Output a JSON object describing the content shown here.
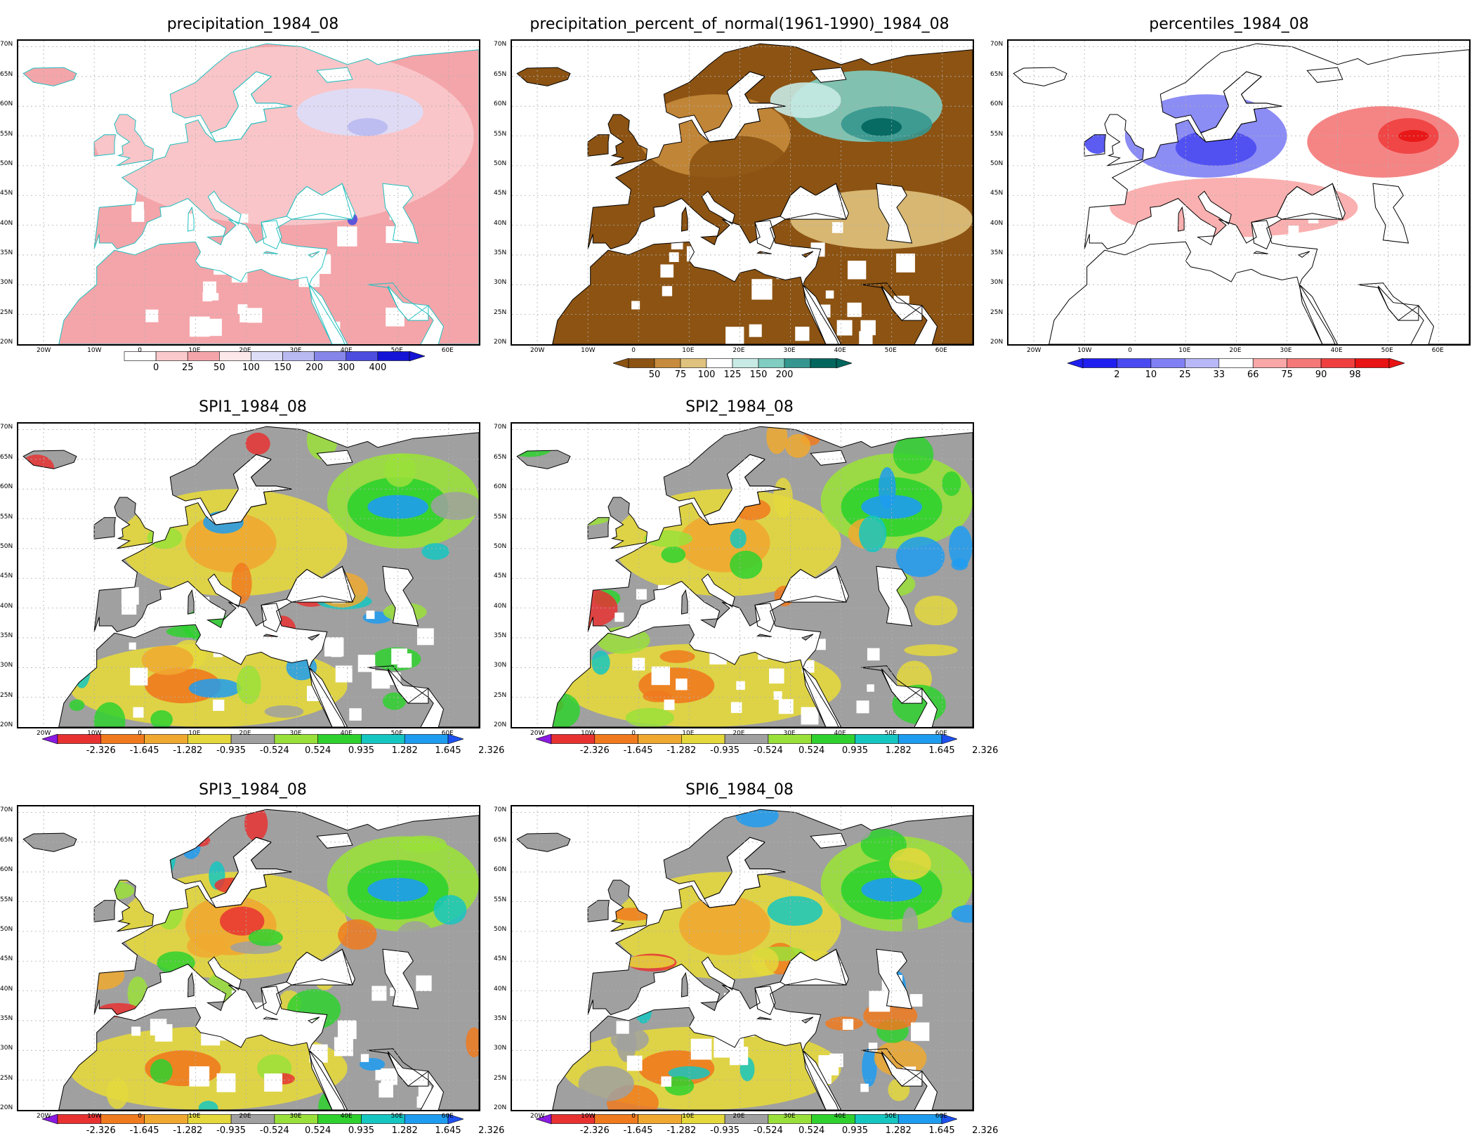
{
  "panels": [
    {
      "id": "precipitation",
      "title": "precipitation_1984_08",
      "scale": "precip",
      "legend_labels": [
        "0",
        "25",
        "50",
        "100",
        "150",
        "200",
        "300",
        "400"
      ],
      "legend_colors": [
        "#ffffff",
        "#f9c9cb",
        "#f4a5aa",
        "#fce8ea",
        "#ddddf8",
        "#b9b9f2",
        "#8585ea",
        "#4d4de0",
        "#1414d6"
      ],
      "underflow": false,
      "overflow_color": "#1414d6"
    },
    {
      "id": "percent-normal",
      "title": "precipitation_percent_of_normal(1961-1990)_1984_08",
      "scale": "percent",
      "legend_labels": [
        "50",
        "75",
        "100",
        "125",
        "150",
        "200"
      ],
      "legend_colors": [
        "#8c5313",
        "#c68b3c",
        "#dfc27d",
        "#ffffff",
        "#c7eae5",
        "#80cdc1",
        "#35978f",
        "#01665e"
      ],
      "underflow_color": "#8c5313",
      "overflow_color": "#01665e"
    },
    {
      "id": "percentiles",
      "title": "percentiles_1984_08",
      "scale": "pctl",
      "legend_labels": [
        "2",
        "10",
        "25",
        "33",
        "66",
        "75",
        "90",
        "98"
      ],
      "legend_colors": [
        "#1f1fef",
        "#4a4af2",
        "#8080f4",
        "#b8b8f8",
        "#ffffff",
        "#f9a7a7",
        "#f47878",
        "#ef3f3f",
        "#e81313"
      ],
      "underflow_color": "#1f1fef",
      "overflow_color": "#e81313"
    },
    {
      "id": "spi1",
      "title": "SPI1_1984_08",
      "scale": "spi",
      "legend_labels": [
        "-2.326",
        "-1.645",
        "-1.282",
        "-0.935",
        "-0.524",
        "0.524",
        "0.935",
        "1.282",
        "1.645",
        "2.326"
      ],
      "legend_colors": [
        "#e83232",
        "#f07a1e",
        "#f0a930",
        "#e4d83c",
        "#a0a0a0",
        "#9ae03a",
        "#2fd12f",
        "#16c6c0",
        "#1e9cf0"
      ],
      "underflow_color": "#8a1be0",
      "overflow_color": "#1e50f0"
    },
    {
      "id": "spi2",
      "title": "SPI2_1984_08",
      "scale": "spi",
      "legend_labels": [
        "-2.326",
        "-1.645",
        "-1.282",
        "-0.935",
        "-0.524",
        "0.524",
        "0.935",
        "1.282",
        "1.645",
        "2.326"
      ],
      "legend_colors": [
        "#e83232",
        "#f07a1e",
        "#f0a930",
        "#e4d83c",
        "#a0a0a0",
        "#9ae03a",
        "#2fd12f",
        "#16c6c0",
        "#1e9cf0"
      ],
      "underflow_color": "#8a1be0",
      "overflow_color": "#1e50f0"
    },
    {
      "id": "spi3",
      "title": "SPI3_1984_08",
      "scale": "spi",
      "legend_labels": [
        "-2.326",
        "-1.645",
        "-1.282",
        "-0.935",
        "-0.524",
        "0.524",
        "0.935",
        "1.282",
        "1.645",
        "2.326"
      ],
      "legend_colors": [
        "#e83232",
        "#f07a1e",
        "#f0a930",
        "#e4d83c",
        "#a0a0a0",
        "#9ae03a",
        "#2fd12f",
        "#16c6c0",
        "#1e9cf0"
      ],
      "underflow_color": "#8a1be0",
      "overflow_color": "#1e50f0"
    },
    {
      "id": "spi6",
      "title": "SPI6_1984_08",
      "scale": "spi",
      "legend_labels": [
        "-2.326",
        "-1.645",
        "-1.282",
        "-0.935",
        "-0.524",
        "0.524",
        "0.935",
        "1.282",
        "1.645",
        "2.326"
      ],
      "legend_colors": [
        "#e83232",
        "#f07a1e",
        "#f0a930",
        "#e4d83c",
        "#a0a0a0",
        "#9ae03a",
        "#2fd12f",
        "#16c6c0",
        "#1e9cf0"
      ],
      "underflow_color": "#8a1be0",
      "overflow_color": "#1e50f0"
    }
  ],
  "lat_ticks": [
    "70N",
    "65N",
    "60N",
    "55N",
    "50N",
    "45N",
    "40N",
    "35N",
    "30N",
    "25N",
    "20N"
  ],
  "lon_ticks": [
    "20W",
    "10W",
    "0",
    "10E",
    "20E",
    "30E",
    "40E",
    "50E",
    "60E"
  ],
  "colors": {
    "frame": "#000000",
    "grid": "#b0b0b0",
    "coast_precip": "#20c0c0",
    "coast": "#000000",
    "ocean": "#ffffff"
  }
}
